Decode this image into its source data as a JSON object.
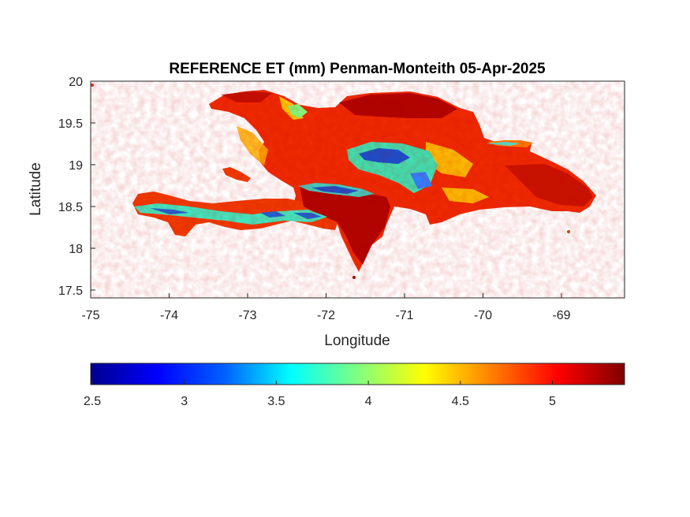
{
  "title": "REFERENCE ET (mm) Penman-Monteith 05-Apr-2025",
  "axes": {
    "xlabel": "Longitude",
    "ylabel": "Latitude",
    "xlim": [
      -75,
      -68.2
    ],
    "ylim": [
      17.4,
      20
    ],
    "xticks": [
      "-75",
      "-74",
      "-73",
      "-72",
      "-71",
      "-70",
      "-69"
    ],
    "yticks": [
      "20",
      "19.5",
      "19",
      "18.5",
      "18",
      "17.5"
    ]
  },
  "colorbar": {
    "colormap": "jet",
    "range": [
      2.5,
      5.4
    ],
    "ticks": [
      "2.5",
      "3",
      "3.5",
      "4",
      "4.5",
      "5"
    ],
    "colors": [
      "#00008f",
      "#0000ff",
      "#0080ff",
      "#00ffff",
      "#80ff80",
      "#ffff00",
      "#ff8000",
      "#ff0000",
      "#800000"
    ]
  },
  "map": {
    "region": "Hispaniola",
    "dominant_color": "#ee2a00",
    "high_color": "#a80000",
    "low_color": "#3060e0"
  }
}
